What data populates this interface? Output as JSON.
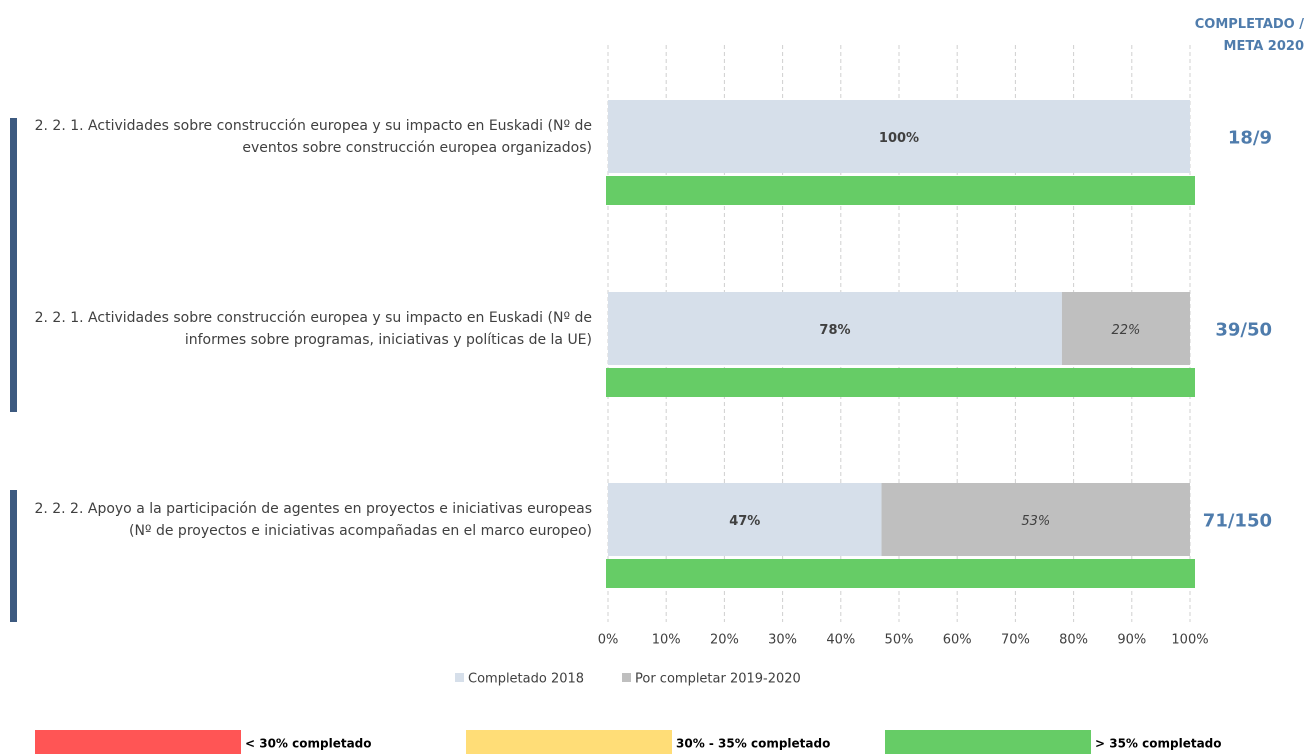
{
  "chart_data": {
    "type": "stacked_barh",
    "categories": [
      "2. 2. 1. Actividades sobre construcción europea y su impacto en Euskadi (Nº de eventos sobre construcción europea organizados)",
      "2. 2. 1. Actividades sobre construcción europea y su impacto en Euskadi (Nº de informes sobre programas, iniciativas y políticas de la UE)",
      "2. 2. 2. Apoyo a la participación de agentes en proyectos e iniciativas europeas (Nº de proyectos e iniciativas acompañadas en el marco europeo)"
    ],
    "series": [
      {
        "name": "Completado 2018",
        "color": "#d6dfea",
        "values": [
          100,
          78,
          47
        ],
        "value_labels": [
          "100%",
          "78%",
          "47%"
        ]
      },
      {
        "name": "Por completar 2019-2020",
        "color": "#bfbfbf",
        "values": [
          null,
          22,
          53
        ],
        "value_labels": [
          null,
          "22%",
          "53%"
        ]
      }
    ],
    "xlim": [
      0,
      100
    ],
    "xticks": [
      {
        "value": 0,
        "label": "0%"
      },
      {
        "value": 10,
        "label": "10%"
      },
      {
        "value": 20,
        "label": "20%"
      },
      {
        "value": 30,
        "label": "30%"
      },
      {
        "value": 40,
        "label": "40%"
      },
      {
        "value": 50,
        "label": "50%"
      },
      {
        "value": 60,
        "label": "60%"
      },
      {
        "value": 70,
        "label": "70%"
      },
      {
        "value": 80,
        "label": "80%"
      },
      {
        "value": 90,
        "label": "90%"
      },
      {
        "value": 100,
        "label": "100%"
      }
    ],
    "grid": true,
    "ratio_header": [
      "COMPLETADO /",
      "META 2020"
    ],
    "ratios": [
      "18/9",
      "39/50",
      "71/150"
    ],
    "status_colors": [
      "#66cc66",
      "#66cc66",
      "#66cc66"
    ],
    "status_legend": [
      {
        "label": "< 30% completado",
        "color": "#ff5555"
      },
      {
        "label": "30% - 35% completado",
        "color": "#ffdd77"
      },
      {
        "label": "> 35% completado",
        "color": "#66cc66"
      }
    ]
  }
}
